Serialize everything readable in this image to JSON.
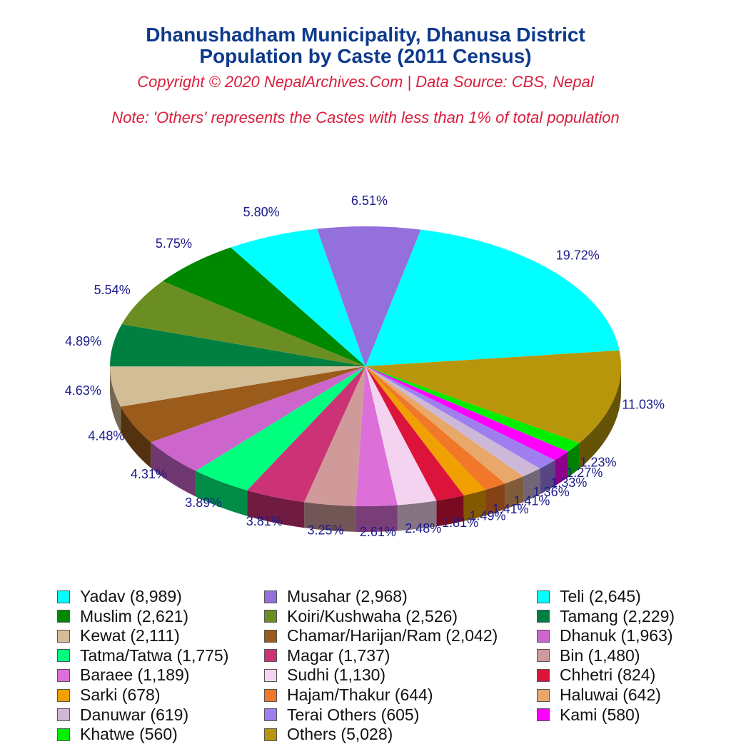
{
  "header": {
    "title_line1": "Dhanushadham Municipality, Dhanusa District",
    "title_line2": "Population by Caste (2011 Census)",
    "subtitle": "Copyright © 2020 NepalArchives.Com | Data Source: CBS, Nepal",
    "note": "Note: 'Others' represents the Castes with less than 1% of total population"
  },
  "chart_data": {
    "type": "pie",
    "title": "Dhanushadham Municipality, Dhanusa District Population by Caste (2011 Census)",
    "legend_position": "bottom",
    "slices": [
      {
        "label": "Yadav (8,989)",
        "value": 8989,
        "percent_label": "19.72%",
        "color": "#00ffff"
      },
      {
        "label": "Others (5,028)",
        "value": 5028,
        "percent_label": "11.03%",
        "color": "#b8960c"
      },
      {
        "label": "Khatwe (560)",
        "value": 560,
        "percent_label": "1.23%",
        "color": "#00ee00"
      },
      {
        "label": "Kami (580)",
        "value": 580,
        "percent_label": "1.27%",
        "color": "#ff00ff"
      },
      {
        "label": "Terai Others (605)",
        "value": 605,
        "percent_label": "1.33%",
        "color": "#9f7fef"
      },
      {
        "label": "Danuwar (619)",
        "value": 619,
        "percent_label": "1.36%",
        "color": "#cdb8d8"
      },
      {
        "label": "Haluwai (642)",
        "value": 642,
        "percent_label": "1.41%",
        "color": "#e8a86a"
      },
      {
        "label": "Hajam/Thakur (644)",
        "value": 644,
        "percent_label": "1.41%",
        "color": "#f07828"
      },
      {
        "label": "Sarki (678)",
        "value": 678,
        "percent_label": "1.49%",
        "color": "#f0a000"
      },
      {
        "label": "Chhetri (824)",
        "value": 824,
        "percent_label": "1.81%",
        "color": "#dc143c"
      },
      {
        "label": "Sudhi (1,130)",
        "value": 1130,
        "percent_label": "2.48%",
        "color": "#f3d3ef"
      },
      {
        "label": "Baraee (1,189)",
        "value": 1189,
        "percent_label": "2.61%",
        "color": "#dc6fd8"
      },
      {
        "label": "Bin (1,480)",
        "value": 1480,
        "percent_label": "3.25%",
        "color": "#d09a9a"
      },
      {
        "label": "Magar (1,737)",
        "value": 1737,
        "percent_label": "3.81%",
        "color": "#cc3377"
      },
      {
        "label": "Tatma/Tatwa (1,775)",
        "value": 1775,
        "percent_label": "3.89%",
        "color": "#00ff7f"
      },
      {
        "label": "Dhanuk (1,963)",
        "value": 1963,
        "percent_label": "4.31%",
        "color": "#cc66cc"
      },
      {
        "label": "Chamar/Harijan/Ram (2,042)",
        "value": 2042,
        "percent_label": "4.48%",
        "color": "#9a5b1b"
      },
      {
        "label": "Kewat (2,111)",
        "value": 2111,
        "percent_label": "4.63%",
        "color": "#d2bd96"
      },
      {
        "label": "Tamang (2,229)",
        "value": 2229,
        "percent_label": "4.89%",
        "color": "#008040"
      },
      {
        "label": "Koiri/Kushwaha (2,526)",
        "value": 2526,
        "percent_label": "5.54%",
        "color": "#6b8e23"
      },
      {
        "label": "Muslim (2,621)",
        "value": 2621,
        "percent_label": "5.75%",
        "color": "#008800"
      },
      {
        "label": "Teli (2,645)",
        "value": 2645,
        "percent_label": "5.80%",
        "color": "#00ffff"
      },
      {
        "label": "Musahar (2,968)",
        "value": 2968,
        "percent_label": "6.51%",
        "color": "#9370db"
      }
    ],
    "legend": [
      {
        "label": "Yadav (8,989)",
        "color": "#00ffff"
      },
      {
        "label": "Musahar (2,968)",
        "color": "#9370db"
      },
      {
        "label": "Teli (2,645)",
        "color": "#00ffff"
      },
      {
        "label": "Muslim (2,621)",
        "color": "#008800"
      },
      {
        "label": "Koiri/Kushwaha (2,526)",
        "color": "#6b8e23"
      },
      {
        "label": "Tamang (2,229)",
        "color": "#008040"
      },
      {
        "label": "Kewat (2,111)",
        "color": "#d2bd96"
      },
      {
        "label": "Chamar/Harijan/Ram (2,042)",
        "color": "#9a5b1b"
      },
      {
        "label": "Dhanuk (1,963)",
        "color": "#cc66cc"
      },
      {
        "label": "Tatma/Tatwa (1,775)",
        "color": "#00ff7f"
      },
      {
        "label": "Magar (1,737)",
        "color": "#cc3377"
      },
      {
        "label": "Bin (1,480)",
        "color": "#d09a9a"
      },
      {
        "label": "Baraee (1,189)",
        "color": "#dc6fd8"
      },
      {
        "label": "Sudhi (1,130)",
        "color": "#f3d3ef"
      },
      {
        "label": "Chhetri (824)",
        "color": "#dc143c"
      },
      {
        "label": "Sarki (678)",
        "color": "#f0a000"
      },
      {
        "label": "Hajam/Thakur (644)",
        "color": "#f07828"
      },
      {
        "label": "Haluwai (642)",
        "color": "#e8a86a"
      },
      {
        "label": "Danuwar (619)",
        "color": "#cdb8d8"
      },
      {
        "label": "Terai Others (605)",
        "color": "#9f7fef"
      },
      {
        "label": "Kami (580)",
        "color": "#ff00ff"
      },
      {
        "label": "Khatwe (560)",
        "color": "#00ee00"
      },
      {
        "label": "Others (5,028)",
        "color": "#b8960c"
      }
    ]
  }
}
